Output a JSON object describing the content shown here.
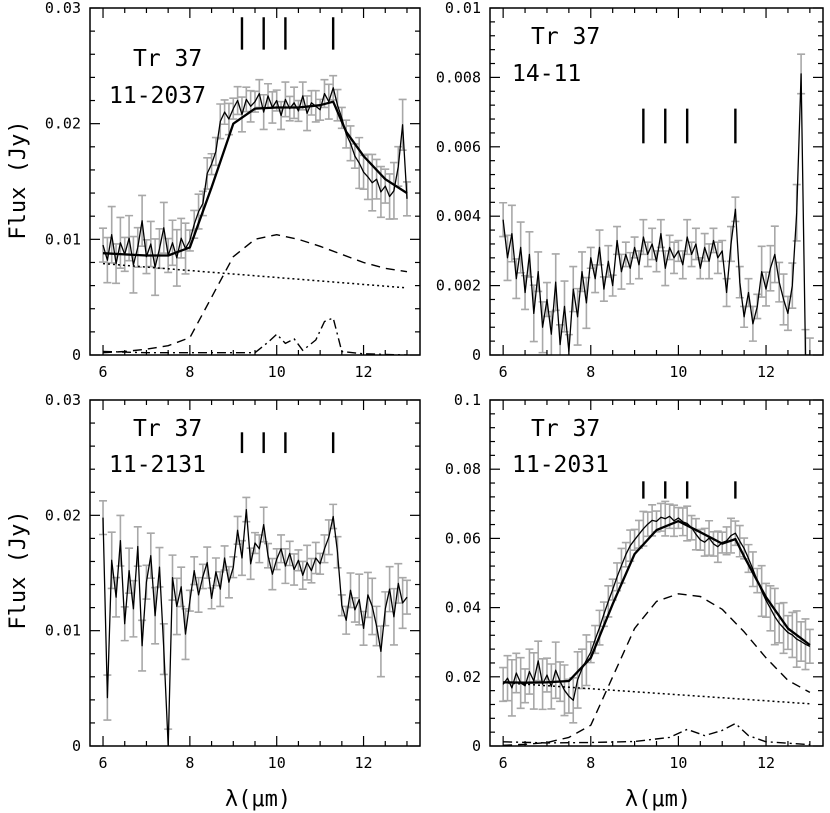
{
  "figure": {
    "ylabel": "Flux (Jy)",
    "xlabel": "λ(μm)"
  },
  "chart_data": [
    {
      "id": "p1",
      "type": "line",
      "label_line1": "Tr 37",
      "label_line2": "11-2037",
      "xlim": [
        5.7,
        13.3
      ],
      "ylim": [
        0,
        0.03
      ],
      "xticks": [
        6,
        8,
        10,
        12
      ],
      "xtick_labels": [
        "6",
        "8",
        "10",
        "12"
      ],
      "yticks": [
        0,
        0.01,
        0.02,
        0.03
      ],
      "ytick_labels": [
        "0",
        "0.01",
        "0.02",
        "0.03"
      ],
      "feature_marks": [
        9.2,
        9.7,
        10.2,
        11.3
      ],
      "feature_mark_range": [
        0.0264,
        0.0292
      ],
      "series": [
        {
          "name": "observed",
          "style": "thin",
          "x": [
            6.0,
            6.1,
            6.2,
            6.3,
            6.4,
            6.5,
            6.6,
            6.7,
            6.8,
            6.9,
            7.0,
            7.1,
            7.2,
            7.3,
            7.4,
            7.5,
            7.6,
            7.7,
            7.8,
            7.9,
            8.0,
            8.1,
            8.2,
            8.3,
            8.4,
            8.5,
            8.6,
            8.7,
            8.8,
            8.9,
            9.0,
            9.1,
            9.2,
            9.3,
            9.4,
            9.5,
            9.6,
            9.7,
            9.8,
            9.9,
            10.0,
            10.1,
            10.2,
            10.3,
            10.4,
            10.5,
            10.6,
            10.7,
            10.8,
            10.9,
            11.0,
            11.1,
            11.2,
            11.3,
            11.4,
            11.5,
            11.6,
            11.7,
            11.8,
            11.9,
            12.0,
            12.1,
            12.2,
            12.3,
            12.4,
            12.5,
            12.6,
            12.7,
            12.8,
            12.9,
            13.0
          ],
          "y": [
            0.0095,
            0.0082,
            0.0104,
            0.0079,
            0.0097,
            0.0087,
            0.0101,
            0.0078,
            0.0093,
            0.0116,
            0.0085,
            0.0096,
            0.0076,
            0.0092,
            0.011,
            0.0086,
            0.0097,
            0.0084,
            0.0101,
            0.0092,
            0.0099,
            0.0113,
            0.0124,
            0.0131,
            0.0157,
            0.0165,
            0.0176,
            0.0202,
            0.021,
            0.0204,
            0.0213,
            0.022,
            0.0208,
            0.0221,
            0.0215,
            0.0219,
            0.0226,
            0.021,
            0.0224,
            0.0214,
            0.022,
            0.0207,
            0.0221,
            0.0213,
            0.0218,
            0.0211,
            0.0224,
            0.0209,
            0.0218,
            0.0215,
            0.0212,
            0.0226,
            0.0219,
            0.0231,
            0.0216,
            0.0205,
            0.0191,
            0.0183,
            0.0172,
            0.0166,
            0.0158,
            0.0154,
            0.0149,
            0.0152,
            0.0141,
            0.0146,
            0.0137,
            0.0142,
            0.0163,
            0.0199,
            0.0135
          ]
        },
        {
          "name": "model_total",
          "style": "thick",
          "x": [
            6.0,
            6.5,
            7.0,
            7.5,
            8.0,
            8.5,
            9.0,
            9.5,
            10.0,
            10.5,
            11.0,
            11.3,
            11.6,
            12.0,
            12.5,
            13.0
          ],
          "y": [
            0.0088,
            0.0087,
            0.0086,
            0.0086,
            0.0093,
            0.0145,
            0.02,
            0.0213,
            0.0214,
            0.0214,
            0.0216,
            0.0219,
            0.0193,
            0.0172,
            0.0152,
            0.014
          ]
        },
        {
          "name": "silicate_component",
          "style": "dashed",
          "x": [
            6.0,
            6.5,
            7.0,
            7.5,
            8.0,
            8.5,
            9.0,
            9.5,
            10.0,
            10.5,
            11.0,
            11.5,
            12.0,
            12.5,
            13.0
          ],
          "y": [
            0.0002,
            0.0003,
            0.0005,
            0.0008,
            0.0015,
            0.005,
            0.0085,
            0.01,
            0.0104,
            0.01,
            0.0094,
            0.0087,
            0.008,
            0.0075,
            0.0072
          ]
        },
        {
          "name": "continuum",
          "style": "dotted",
          "x": [
            6.0,
            13.0
          ],
          "y": [
            0.0079,
            0.0058
          ]
        },
        {
          "name": "pah_component",
          "style": "dashdot",
          "x": [
            6.0,
            7.0,
            8.0,
            9.0,
            9.5,
            9.8,
            10.0,
            10.2,
            10.4,
            10.6,
            10.9,
            11.1,
            11.3,
            11.5,
            12.0,
            13.0
          ],
          "y": [
            0.0003,
            0.0002,
            0.0002,
            0.0002,
            0.0002,
            0.0011,
            0.0018,
            0.001,
            0.0014,
            0.0004,
            0.0013,
            0.0029,
            0.0032,
            0.0003,
            0.0001,
            0.0
          ]
        }
      ]
    },
    {
      "id": "p2",
      "type": "line",
      "label_line1": "Tr 37",
      "label_line2": "14-11",
      "xlim": [
        5.7,
        13.3
      ],
      "ylim": [
        0,
        0.01
      ],
      "xticks": [
        6,
        8,
        10,
        12
      ],
      "xtick_labels": [
        "6",
        "8",
        "10",
        "12"
      ],
      "yticks": [
        0,
        0.002,
        0.004,
        0.006,
        0.008,
        0.01
      ],
      "ytick_labels": [
        "0",
        "0.002",
        "0.004",
        "0.006",
        "0.008",
        "0.01"
      ],
      "feature_marks": [
        9.2,
        9.7,
        10.2,
        11.3
      ],
      "feature_mark_range": [
        0.0061,
        0.0071
      ],
      "series": [
        {
          "name": "observed",
          "style": "thin",
          "x": [
            6.0,
            6.1,
            6.2,
            6.3,
            6.4,
            6.5,
            6.6,
            6.7,
            6.8,
            6.9,
            7.0,
            7.1,
            7.2,
            7.3,
            7.4,
            7.5,
            7.6,
            7.7,
            7.8,
            7.9,
            8.0,
            8.1,
            8.2,
            8.3,
            8.4,
            8.5,
            8.6,
            8.7,
            8.8,
            8.9,
            9.0,
            9.1,
            9.2,
            9.3,
            9.4,
            9.5,
            9.6,
            9.7,
            9.8,
            9.9,
            10.0,
            10.1,
            10.2,
            10.3,
            10.4,
            10.5,
            10.6,
            10.7,
            10.8,
            10.9,
            11.0,
            11.1,
            11.2,
            11.3,
            11.4,
            11.5,
            11.6,
            11.7,
            11.8,
            11.9,
            12.0,
            12.1,
            12.2,
            12.3,
            12.4,
            12.5,
            12.6,
            12.7,
            12.8,
            12.9,
            13.0
          ],
          "y": [
            0.0039,
            0.0028,
            0.0035,
            0.0022,
            0.0031,
            0.0018,
            0.0029,
            0.0012,
            0.0024,
            0.0008,
            0.0016,
            0.0006,
            0.0021,
            0.0003,
            0.0014,
            0.0001,
            0.0019,
            0.0011,
            0.0024,
            0.0015,
            0.0028,
            0.0022,
            0.0031,
            0.0019,
            0.0027,
            0.002,
            0.0033,
            0.0024,
            0.0029,
            0.0025,
            0.0031,
            0.0026,
            0.0034,
            0.0029,
            0.0032,
            0.0027,
            0.0035,
            0.0025,
            0.0031,
            0.0028,
            0.003,
            0.0026,
            0.0034,
            0.0029,
            0.0032,
            0.0025,
            0.0031,
            0.0027,
            0.0033,
            0.0028,
            0.003,
            0.0018,
            0.0032,
            0.0042,
            0.0021,
            0.0011,
            0.0018,
            0.0009,
            0.0014,
            0.0024,
            0.0019,
            0.0025,
            0.0029,
            0.0021,
            0.0016,
            0.0012,
            0.002,
            0.0041,
            0.0081,
            0.0,
            0.0
          ]
        }
      ]
    },
    {
      "id": "p3",
      "type": "line",
      "label_line1": "Tr 37",
      "label_line2": "11-2131",
      "xlim": [
        5.7,
        13.3
      ],
      "ylim": [
        0,
        0.03
      ],
      "xticks": [
        6,
        8,
        10,
        12
      ],
      "xtick_labels": [
        "6",
        "8",
        "10",
        "12"
      ],
      "yticks": [
        0,
        0.01,
        0.02,
        0.03
      ],
      "ytick_labels": [
        "0",
        "0.01",
        "0.02",
        "0.03"
      ],
      "feature_marks": [
        9.2,
        9.7,
        10.2,
        11.3
      ],
      "feature_mark_range": [
        0.0254,
        0.0272
      ],
      "series": [
        {
          "name": "observed",
          "style": "thin",
          "x": [
            6.0,
            6.1,
            6.2,
            6.3,
            6.4,
            6.5,
            6.6,
            6.7,
            6.8,
            6.9,
            7.0,
            7.1,
            7.2,
            7.3,
            7.4,
            7.5,
            7.6,
            7.7,
            7.8,
            7.9,
            8.0,
            8.1,
            8.2,
            8.3,
            8.4,
            8.5,
            8.6,
            8.7,
            8.8,
            8.9,
            9.0,
            9.1,
            9.2,
            9.3,
            9.4,
            9.5,
            9.6,
            9.7,
            9.8,
            9.9,
            10.0,
            10.1,
            10.2,
            10.3,
            10.4,
            10.5,
            10.6,
            10.7,
            10.8,
            10.9,
            11.0,
            11.1,
            11.2,
            11.3,
            11.4,
            11.5,
            11.6,
            11.7,
            11.8,
            11.9,
            12.0,
            12.1,
            12.2,
            12.3,
            12.4,
            12.5,
            12.6,
            12.7,
            12.8,
            12.9,
            13.0
          ],
          "y": [
            0.0198,
            0.0042,
            0.0161,
            0.0129,
            0.0178,
            0.0106,
            0.0152,
            0.0119,
            0.0173,
            0.0087,
            0.0142,
            0.0165,
            0.0113,
            0.0155,
            0.0084,
            0.0,
            0.0146,
            0.0121,
            0.0138,
            0.0097,
            0.0126,
            0.0152,
            0.0131,
            0.0147,
            0.0159,
            0.0128,
            0.0151,
            0.0136,
            0.0163,
            0.0142,
            0.0155,
            0.0187,
            0.0163,
            0.0205,
            0.0158,
            0.0176,
            0.0171,
            0.0192,
            0.0165,
            0.0149,
            0.0162,
            0.0171,
            0.0156,
            0.0167,
            0.0153,
            0.0161,
            0.0148,
            0.0159,
            0.0152,
            0.0163,
            0.0158,
            0.0171,
            0.0181,
            0.0199,
            0.0168,
            0.0122,
            0.0109,
            0.0135,
            0.0118,
            0.0127,
            0.0102,
            0.0131,
            0.0121,
            0.0104,
            0.0082,
            0.0119,
            0.0136,
            0.0112,
            0.0141,
            0.0124,
            0.0129
          ]
        }
      ]
    },
    {
      "id": "p4",
      "type": "line",
      "label_line1": "Tr 37",
      "label_line2": "11-2031",
      "xlim": [
        5.7,
        13.3
      ],
      "ylim": [
        0,
        0.1
      ],
      "xticks": [
        6,
        8,
        10,
        12
      ],
      "xtick_labels": [
        "6",
        "8",
        "10",
        "12"
      ],
      "yticks": [
        0,
        0.02,
        0.04,
        0.06,
        0.08,
        0.1
      ],
      "ytick_labels": [
        "0",
        "0.02",
        "0.04",
        "0.06",
        "0.08",
        "0.1"
      ],
      "feature_marks": [
        9.2,
        9.7,
        10.2,
        11.3
      ],
      "feature_mark_range": [
        0.0715,
        0.0765
      ],
      "series": [
        {
          "name": "observed",
          "style": "thin",
          "x": [
            6.0,
            6.1,
            6.2,
            6.3,
            6.4,
            6.5,
            6.6,
            6.7,
            6.8,
            6.9,
            7.0,
            7.1,
            7.2,
            7.3,
            7.4,
            7.5,
            7.6,
            7.7,
            7.8,
            7.9,
            8.0,
            8.1,
            8.2,
            8.3,
            8.4,
            8.5,
            8.6,
            8.7,
            8.8,
            8.9,
            9.0,
            9.1,
            9.2,
            9.3,
            9.4,
            9.5,
            9.6,
            9.7,
            9.8,
            9.9,
            10.0,
            10.1,
            10.2,
            10.3,
            10.4,
            10.5,
            10.6,
            10.7,
            10.8,
            10.9,
            11.0,
            11.1,
            11.2,
            11.3,
            11.4,
            11.5,
            11.6,
            11.7,
            11.8,
            11.9,
            12.0,
            12.1,
            12.2,
            12.3,
            12.4,
            12.5,
            12.6,
            12.7,
            12.8,
            12.9,
            13.0
          ],
          "y": [
            0.0178,
            0.0196,
            0.0168,
            0.0211,
            0.0182,
            0.0174,
            0.0215,
            0.0188,
            0.0246,
            0.0179,
            0.0205,
            0.0172,
            0.0219,
            0.0186,
            0.0161,
            0.0144,
            0.0132,
            0.0191,
            0.0223,
            0.0248,
            0.0271,
            0.0308,
            0.0342,
            0.0381,
            0.0418,
            0.0452,
            0.0489,
            0.0521,
            0.0553,
            0.0579,
            0.0596,
            0.0612,
            0.0628,
            0.0641,
            0.0652,
            0.0649,
            0.0661,
            0.0657,
            0.0664,
            0.0651,
            0.0659,
            0.0648,
            0.0643,
            0.0631,
            0.0612,
            0.0596,
            0.0589,
            0.0601,
            0.0584,
            0.0576,
            0.0588,
            0.0593,
            0.0608,
            0.0615,
            0.0592,
            0.0571,
            0.0542,
            0.0511,
            0.0478,
            0.0448,
            0.0421,
            0.0398,
            0.0374,
            0.0355,
            0.0341,
            0.0328,
            0.0321,
            0.0309,
            0.0302,
            0.0294,
            0.0288
          ]
        },
        {
          "name": "model_total",
          "style": "thick",
          "x": [
            6.0,
            6.5,
            7.0,
            7.5,
            8.0,
            8.5,
            9.0,
            9.5,
            10.0,
            10.5,
            11.0,
            11.3,
            11.5,
            12.0,
            12.5,
            13.0
          ],
          "y": [
            0.0184,
            0.0183,
            0.0184,
            0.0188,
            0.0255,
            0.041,
            0.0555,
            0.0624,
            0.065,
            0.0618,
            0.0585,
            0.0598,
            0.0548,
            0.043,
            0.034,
            0.0292
          ]
        },
        {
          "name": "silicate_component",
          "style": "dashed",
          "x": [
            6.0,
            6.5,
            7.0,
            7.5,
            8.0,
            8.5,
            9.0,
            9.5,
            10.0,
            10.5,
            11.0,
            11.5,
            12.0,
            12.5,
            13.0
          ],
          "y": [
            0.0002,
            0.0005,
            0.001,
            0.0025,
            0.006,
            0.02,
            0.034,
            0.0418,
            0.044,
            0.0432,
            0.0395,
            0.033,
            0.0255,
            0.019,
            0.0155
          ]
        },
        {
          "name": "continuum",
          "style": "dotted",
          "x": [
            6.0,
            13.0
          ],
          "y": [
            0.0183,
            0.0122
          ]
        },
        {
          "name": "pah_component",
          "style": "dashdot",
          "x": [
            6.0,
            7.0,
            8.0,
            9.0,
            9.8,
            10.2,
            10.6,
            11.0,
            11.3,
            11.6,
            12.0,
            13.0
          ],
          "y": [
            0.0012,
            0.0009,
            0.001,
            0.0013,
            0.0025,
            0.0048,
            0.003,
            0.0045,
            0.0065,
            0.003,
            0.0012,
            0.0004
          ]
        }
      ]
    }
  ]
}
